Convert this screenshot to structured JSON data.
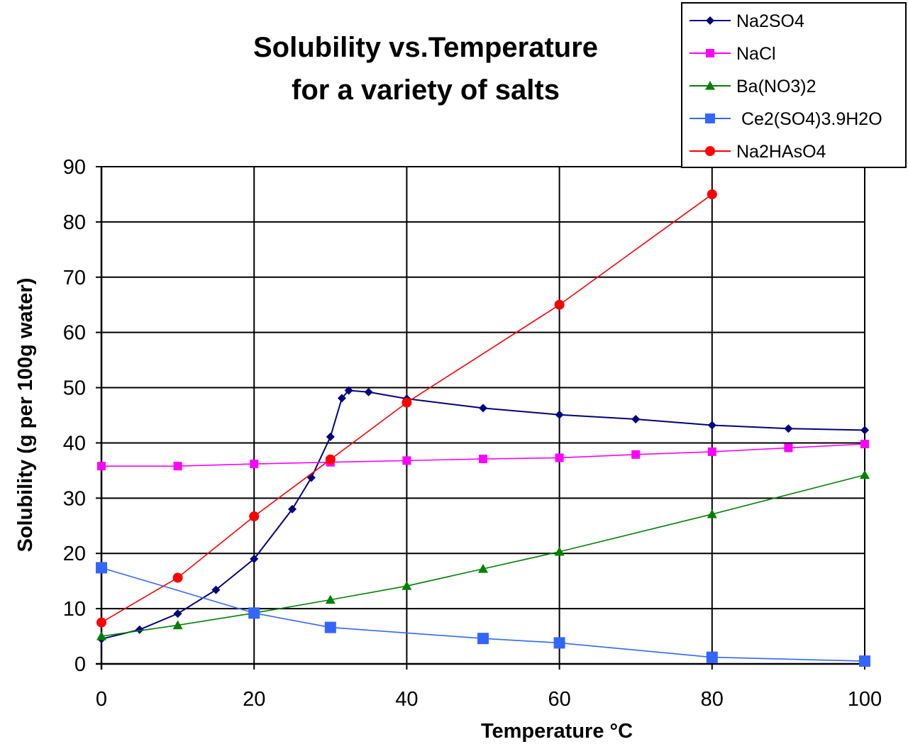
{
  "chart_data": {
    "type": "line",
    "title_lines": [
      "Solubility vs.Temperature",
      "for a variety of salts"
    ],
    "xlabel": "Temperature  °C",
    "ylabel": "Solubility (g per 100g water)",
    "xlim": [
      0,
      100
    ],
    "ylim": [
      0,
      90
    ],
    "xticks": [
      0,
      20,
      40,
      60,
      80,
      100
    ],
    "yticks": [
      0,
      10,
      20,
      30,
      40,
      50,
      60,
      70,
      80,
      90
    ],
    "grid": true,
    "legend_position": "top-right",
    "series": [
      {
        "name": "Na2SO4",
        "color": "#000080",
        "marker": "diamond",
        "x": [
          0,
          5,
          10,
          15,
          20,
          25,
          27.5,
          30,
          31.5,
          32.4,
          35,
          40,
          50,
          60,
          70,
          80,
          90,
          100
        ],
        "y": [
          4.5,
          6.2,
          9.1,
          13.4,
          19,
          28,
          33.7,
          41.1,
          48.1,
          49.5,
          49.2,
          48,
          46.3,
          45.1,
          44.3,
          43.2,
          42.6,
          42.3
        ]
      },
      {
        "name": "NaCl",
        "color": "#ff00ff",
        "marker": "square",
        "x": [
          0,
          10,
          20,
          30,
          40,
          50,
          60,
          70,
          80,
          90,
          100
        ],
        "y": [
          35.8,
          35.8,
          36.2,
          36.5,
          36.8,
          37.1,
          37.3,
          37.9,
          38.4,
          39.1,
          39.8
        ]
      },
      {
        "name": "Ba(NO3)2",
        "color": "#008000",
        "marker": "triangle",
        "x": [
          0,
          10,
          20,
          30,
          40,
          50,
          60,
          80,
          100
        ],
        "y": [
          5,
          7,
          9.2,
          11.6,
          14.1,
          17.2,
          20.3,
          27.1,
          34.2
        ]
      },
      {
        "name": " Ce2(SO4)3.9H2O",
        "color": "#3366ff",
        "marker": "square",
        "x": [
          0,
          20,
          30,
          50,
          60,
          80,
          100
        ],
        "y": [
          17.4,
          9.2,
          6.6,
          4.6,
          3.8,
          1.2,
          0.5
        ]
      },
      {
        "name": "Na2HAsO4",
        "color": "#ff0000",
        "marker": "circle",
        "x": [
          0,
          10,
          20,
          30,
          40,
          60,
          80
        ],
        "y": [
          7.5,
          15.6,
          26.7,
          37,
          47.3,
          65,
          85
        ]
      }
    ]
  }
}
